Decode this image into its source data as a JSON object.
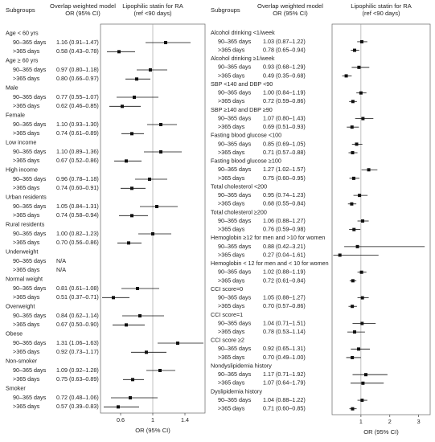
{
  "chart_data": [
    {
      "type": "forest",
      "header_subgroups": "Subgroups",
      "header_model": [
        "Overlap weighted model",
        "OR (95% CI)"
      ],
      "header_plot": [
        "Lipophilic statin  for RA",
        "(ref <90 days)"
      ],
      "xlabel": "OR (95% CI)",
      "xlim": [
        0.35,
        1.65
      ],
      "xticks": [
        0.6,
        1,
        1.4
      ],
      "reference": 1,
      "groups": [
        {
          "name": "Age < 60 yrs",
          "rows": [
            {
              "label": "90–365 days",
              "text": "1.16 (0.91–1.47)",
              "estimate": 1.16,
              "lower": 0.91,
              "upper": 1.47
            },
            {
              "label": ">365 days",
              "text": "0.58 (0.43–0.78)",
              "estimate": 0.58,
              "lower": 0.43,
              "upper": 0.78
            }
          ]
        },
        {
          "name": "Age ≥ 60 yrs",
          "rows": [
            {
              "label": "90–365 days",
              "text": "0.97 (0.80–1.18)",
              "estimate": 0.97,
              "lower": 0.8,
              "upper": 1.18
            },
            {
              "label": ">365 days",
              "text": "0.80 (0.66–0.97)",
              "estimate": 0.8,
              "lower": 0.66,
              "upper": 0.97
            }
          ]
        },
        {
          "name": "Male",
          "rows": [
            {
              "label": "90–365 days",
              "text": "0.77 (0.55–1.07)",
              "estimate": 0.77,
              "lower": 0.55,
              "upper": 1.07
            },
            {
              "label": ">365 days",
              "text": "0.62 (0.46–0.85)",
              "estimate": 0.62,
              "lower": 0.46,
              "upper": 0.85
            }
          ]
        },
        {
          "name": "Female",
          "rows": [
            {
              "label": "90–365 days",
              "text": "1.10 (0.93–1.30)",
              "estimate": 1.1,
              "lower": 0.93,
              "upper": 1.3
            },
            {
              "label": ">365 days",
              "text": "0.74 (0.61–0.89)",
              "estimate": 0.74,
              "lower": 0.61,
              "upper": 0.89
            }
          ]
        },
        {
          "name": "Low income",
          "rows": [
            {
              "label": "90–365 days",
              "text": "1.10 (0.89–1.36)",
              "estimate": 1.1,
              "lower": 0.89,
              "upper": 1.36
            },
            {
              "label": ">365 days",
              "text": "0.67 (0.52–0.86)",
              "estimate": 0.67,
              "lower": 0.52,
              "upper": 0.86
            }
          ]
        },
        {
          "name": "High income",
          "rows": [
            {
              "label": "90–365 days",
              "text": "0.96 (0.78–1.18)",
              "estimate": 0.96,
              "lower": 0.78,
              "upper": 1.18
            },
            {
              "label": ">365 days",
              "text": "0.74 (0.60–0.91)",
              "estimate": 0.74,
              "lower": 0.6,
              "upper": 0.91
            }
          ]
        },
        {
          "name": "Urban residents",
          "rows": [
            {
              "label": "90–365 days",
              "text": "1.05 (0.84–1.31)",
              "estimate": 1.05,
              "lower": 0.84,
              "upper": 1.31
            },
            {
              "label": ">365 days",
              "text": "0.74 (0.58–0.94)",
              "estimate": 0.74,
              "lower": 0.58,
              "upper": 0.94
            }
          ]
        },
        {
          "name": "Rural residents",
          "rows": [
            {
              "label": "90–365 days",
              "text": "1.00 (0.82–1.23)",
              "estimate": 1.0,
              "lower": 0.82,
              "upper": 1.23
            },
            {
              "label": ">365 days",
              "text": "0.70 (0.56–0.86)",
              "estimate": 0.7,
              "lower": 0.56,
              "upper": 0.86
            }
          ]
        },
        {
          "name": "Underweight",
          "rows": [
            {
              "label": "90–365 days",
              "text": "N/A",
              "estimate": null,
              "lower": null,
              "upper": null
            },
            {
              "label": ">365 days",
              "text": "N/A",
              "estimate": null,
              "lower": null,
              "upper": null
            }
          ]
        },
        {
          "name": "Normal weight",
          "rows": [
            {
              "label": "90–365 days",
              "text": "0.81 (0.61–1.08)",
              "estimate": 0.81,
              "lower": 0.61,
              "upper": 1.08
            },
            {
              "label": ">365 days",
              "text": "0.51 (0.37–0.71)",
              "estimate": 0.51,
              "lower": 0.37,
              "upper": 0.71
            }
          ]
        },
        {
          "name": "Overweight",
          "rows": [
            {
              "label": "90–365 days",
              "text": "0.84 (0.62–1.14)",
              "estimate": 0.84,
              "lower": 0.62,
              "upper": 1.14
            },
            {
              "label": ">365 days",
              "text": "0.67 (0.50–0.90)",
              "estimate": 0.67,
              "lower": 0.5,
              "upper": 0.9
            }
          ]
        },
        {
          "name": "Obese",
          "rows": [
            {
              "label": "90–365 days",
              "text": "1.31 (1.06–1.63)",
              "estimate": 1.31,
              "lower": 1.06,
              "upper": 1.63
            },
            {
              "label": ">365 days",
              "text": "0.92 (0.73–1.17)",
              "estimate": 0.92,
              "lower": 0.73,
              "upper": 1.17
            }
          ]
        },
        {
          "name": "Non-smoker",
          "rows": [
            {
              "label": "90–365 days",
              "text": "1.09 (0.92–1.28)",
              "estimate": 1.09,
              "lower": 0.92,
              "upper": 1.28
            },
            {
              "label": ">365 days",
              "text": "0.75 (0.63–0.89)",
              "estimate": 0.75,
              "lower": 0.63,
              "upper": 0.89
            }
          ]
        },
        {
          "name": "Smoker",
          "rows": [
            {
              "label": "90–365 days",
              "text": "0.72 (0.48–1.06)",
              "estimate": 0.72,
              "lower": 0.48,
              "upper": 1.06
            },
            {
              "label": ">365 days",
              "text": "0.57 (0.39–0.83)",
              "estimate": 0.57,
              "lower": 0.39,
              "upper": 0.83
            }
          ]
        }
      ]
    },
    {
      "type": "forest",
      "header_subgroups": "Subgroups",
      "header_model": [
        "Overlap weighted model",
        "OR (95% CI)"
      ],
      "header_plot": [
        "Lipophilic statin  for RA",
        "(ref <90 days)"
      ],
      "xlabel": "OR (95% CI)",
      "xlim": [
        0,
        3.4
      ],
      "xticks": [
        1,
        2,
        3
      ],
      "reference": 1,
      "groups": [
        {
          "name": "Alcohol drinking <1/week",
          "rows": [
            {
              "label": "90–365 days",
              "text": "1.03 (0.87–1.22)",
              "estimate": 1.03,
              "lower": 0.87,
              "upper": 1.22
            },
            {
              "label": ">365 days",
              "text": "0.78 (0.65–0.94)",
              "estimate": 0.78,
              "lower": 0.65,
              "upper": 0.94
            }
          ]
        },
        {
          "name": "Alcohol drinking ≥1/week",
          "rows": [
            {
              "label": "90–365 days",
              "text": "0.93 (0.68–1.29)",
              "estimate": 0.93,
              "lower": 0.68,
              "upper": 1.29
            },
            {
              "label": ">365 days",
              "text": "0.49 (0.35–0.68)",
              "estimate": 0.49,
              "lower": 0.35,
              "upper": 0.68
            }
          ]
        },
        {
          "name": "SBP <140 and DBP <90",
          "rows": [
            {
              "label": "90–365 days",
              "text": "1.00 (0.84–1.19)",
              "estimate": 1.0,
              "lower": 0.84,
              "upper": 1.19
            },
            {
              "label": ">365 days",
              "text": "0.72 (0.59–0.86)",
              "estimate": 0.72,
              "lower": 0.59,
              "upper": 0.86
            }
          ]
        },
        {
          "name": "SBP ≥140 and DBP ≥90",
          "rows": [
            {
              "label": "90–365 days",
              "text": "1.07 (0.80–1.43)",
              "estimate": 1.07,
              "lower": 0.8,
              "upper": 1.43
            },
            {
              "label": ">365 days",
              "text": "0.69 (0.51–0.93)",
              "estimate": 0.69,
              "lower": 0.51,
              "upper": 0.93
            }
          ]
        },
        {
          "name": "Fasting blood glucose <100",
          "rows": [
            {
              "label": "90–365 days",
              "text": "0.85 (0.69–1.05)",
              "estimate": 0.85,
              "lower": 0.69,
              "upper": 1.05
            },
            {
              "label": ">365 days",
              "text": "0.71 (0.57–0.88)",
              "estimate": 0.71,
              "lower": 0.57,
              "upper": 0.88
            }
          ]
        },
        {
          "name": "Fasting blood glucose ≥100",
          "rows": [
            {
              "label": "90–365 days",
              "text": "1.27 (1.02–1.57)",
              "estimate": 1.27,
              "lower": 1.02,
              "upper": 1.57
            },
            {
              "label": ">365 days",
              "text": "0.75 (0.60–0.95)",
              "estimate": 0.75,
              "lower": 0.6,
              "upper": 0.95
            }
          ]
        },
        {
          "name": "Total cholesterol <200",
          "rows": [
            {
              "label": "90–365 days",
              "text": "0.95 (0.74–1.23)",
              "estimate": 0.95,
              "lower": 0.74,
              "upper": 1.23
            },
            {
              "label": ">365 days",
              "text": "0.68 (0.55–0.84)",
              "estimate": 0.68,
              "lower": 0.55,
              "upper": 0.84
            }
          ]
        },
        {
          "name": "Total cholesterol ≥200",
          "rows": [
            {
              "label": "90–365 days",
              "text": "1.06 (0.88–1.27)",
              "estimate": 1.06,
              "lower": 0.88,
              "upper": 1.27
            },
            {
              "label": ">365 days",
              "text": "0.76 (0.59–0.98)",
              "estimate": 0.76,
              "lower": 0.59,
              "upper": 0.98
            }
          ]
        },
        {
          "name": "Hemoglobin ≥12 for men and >10 for women",
          "rows": [
            {
              "label": "90–365 days",
              "text": "0.88 (0.42–3.21)",
              "estimate": 0.88,
              "lower": 0.42,
              "upper": 3.21
            },
            {
              "label": ">365 days",
              "text": "0.27 (0.04–1.61)",
              "estimate": 0.27,
              "lower": 0.04,
              "upper": 1.61
            }
          ]
        },
        {
          "name": "Hemoglobin < 12 for men and < 10 for women",
          "rows": [
            {
              "label": "90–365 days",
              "text": "1.02 (0.88–1.19)",
              "estimate": 1.02,
              "lower": 0.88,
              "upper": 1.19
            },
            {
              "label": ">365 days",
              "text": "0.72 (0.61–0.84)",
              "estimate": 0.72,
              "lower": 0.61,
              "upper": 0.84
            }
          ]
        },
        {
          "name": "CCI score=0",
          "rows": [
            {
              "label": "90–365 days",
              "text": "1.05 (0.88–1.27)",
              "estimate": 1.05,
              "lower": 0.88,
              "upper": 1.27
            },
            {
              "label": ">365 days",
              "text": "0.70 (0.57–0.86)",
              "estimate": 0.7,
              "lower": 0.57,
              "upper": 0.86
            }
          ]
        },
        {
          "name": "CCI score=1",
          "rows": [
            {
              "label": "90–365 days",
              "text": "1.04 (0.71–1.51)",
              "estimate": 1.04,
              "lower": 0.71,
              "upper": 1.51
            },
            {
              "label": ">365 days",
              "text": "0.78 (0.53–1.14)",
              "estimate": 0.78,
              "lower": 0.53,
              "upper": 1.14
            }
          ]
        },
        {
          "name": "CCI score ≥2",
          "rows": [
            {
              "label": "90–365 days",
              "text": "0.92 (0.65–1.31)",
              "estimate": 0.92,
              "lower": 0.65,
              "upper": 1.31
            },
            {
              "label": ">365 days",
              "text": "0.70 (0.49–1.00)",
              "estimate": 0.7,
              "lower": 0.49,
              "upper": 1.0
            }
          ]
        },
        {
          "name": "Nondyslipidemia history",
          "rows": [
            {
              "label": "90–365 days",
              "text": "1.17 (0.71–1.92)",
              "estimate": 1.17,
              "lower": 0.71,
              "upper": 1.92
            },
            {
              "label": ">365 days",
              "text": "1.07 (0.64–1.79)",
              "estimate": 1.07,
              "lower": 0.64,
              "upper": 1.79
            }
          ]
        },
        {
          "name": "Dyslipidemia history",
          "rows": [
            {
              "label": "90–365 days",
              "text": "1.04 (0.88–1.22)",
              "estimate": 1.04,
              "lower": 0.88,
              "upper": 1.22
            },
            {
              "label": ">365 days",
              "text": "0.71 (0.60–0.85)",
              "estimate": 0.71,
              "lower": 0.6,
              "upper": 0.85
            }
          ]
        }
      ]
    }
  ]
}
